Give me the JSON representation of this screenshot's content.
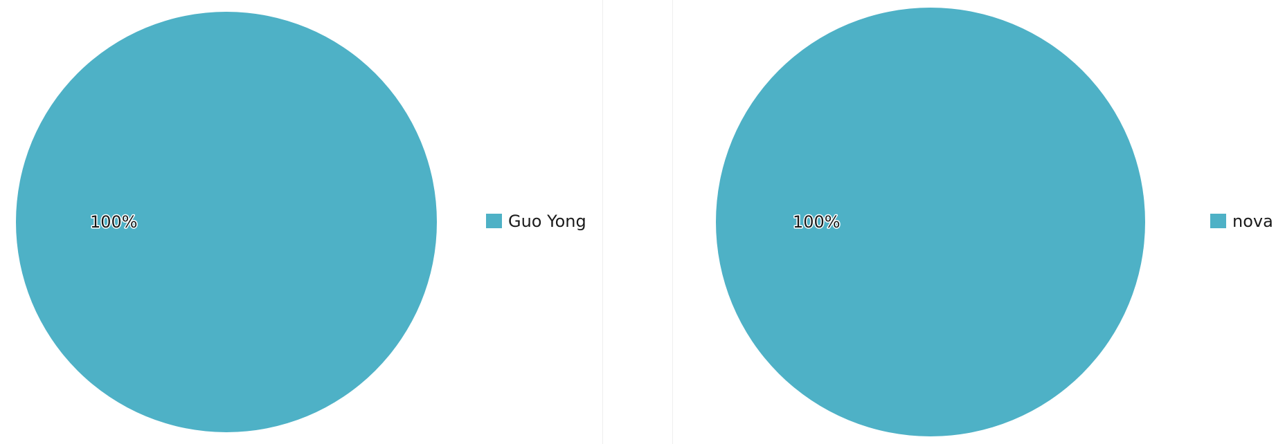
{
  "chart_data": [
    {
      "type": "pie",
      "categories": [
        "Guo Yong"
      ],
      "values": [
        100
      ],
      "value_labels": [
        "100%"
      ],
      "colors": [
        "#4eb1c6"
      ],
      "legend_position": "right"
    },
    {
      "type": "pie",
      "categories": [
        "nova"
      ],
      "values": [
        100
      ],
      "value_labels": [
        "100%"
      ],
      "colors": [
        "#4eb1c6"
      ],
      "legend_position": "right"
    }
  ]
}
